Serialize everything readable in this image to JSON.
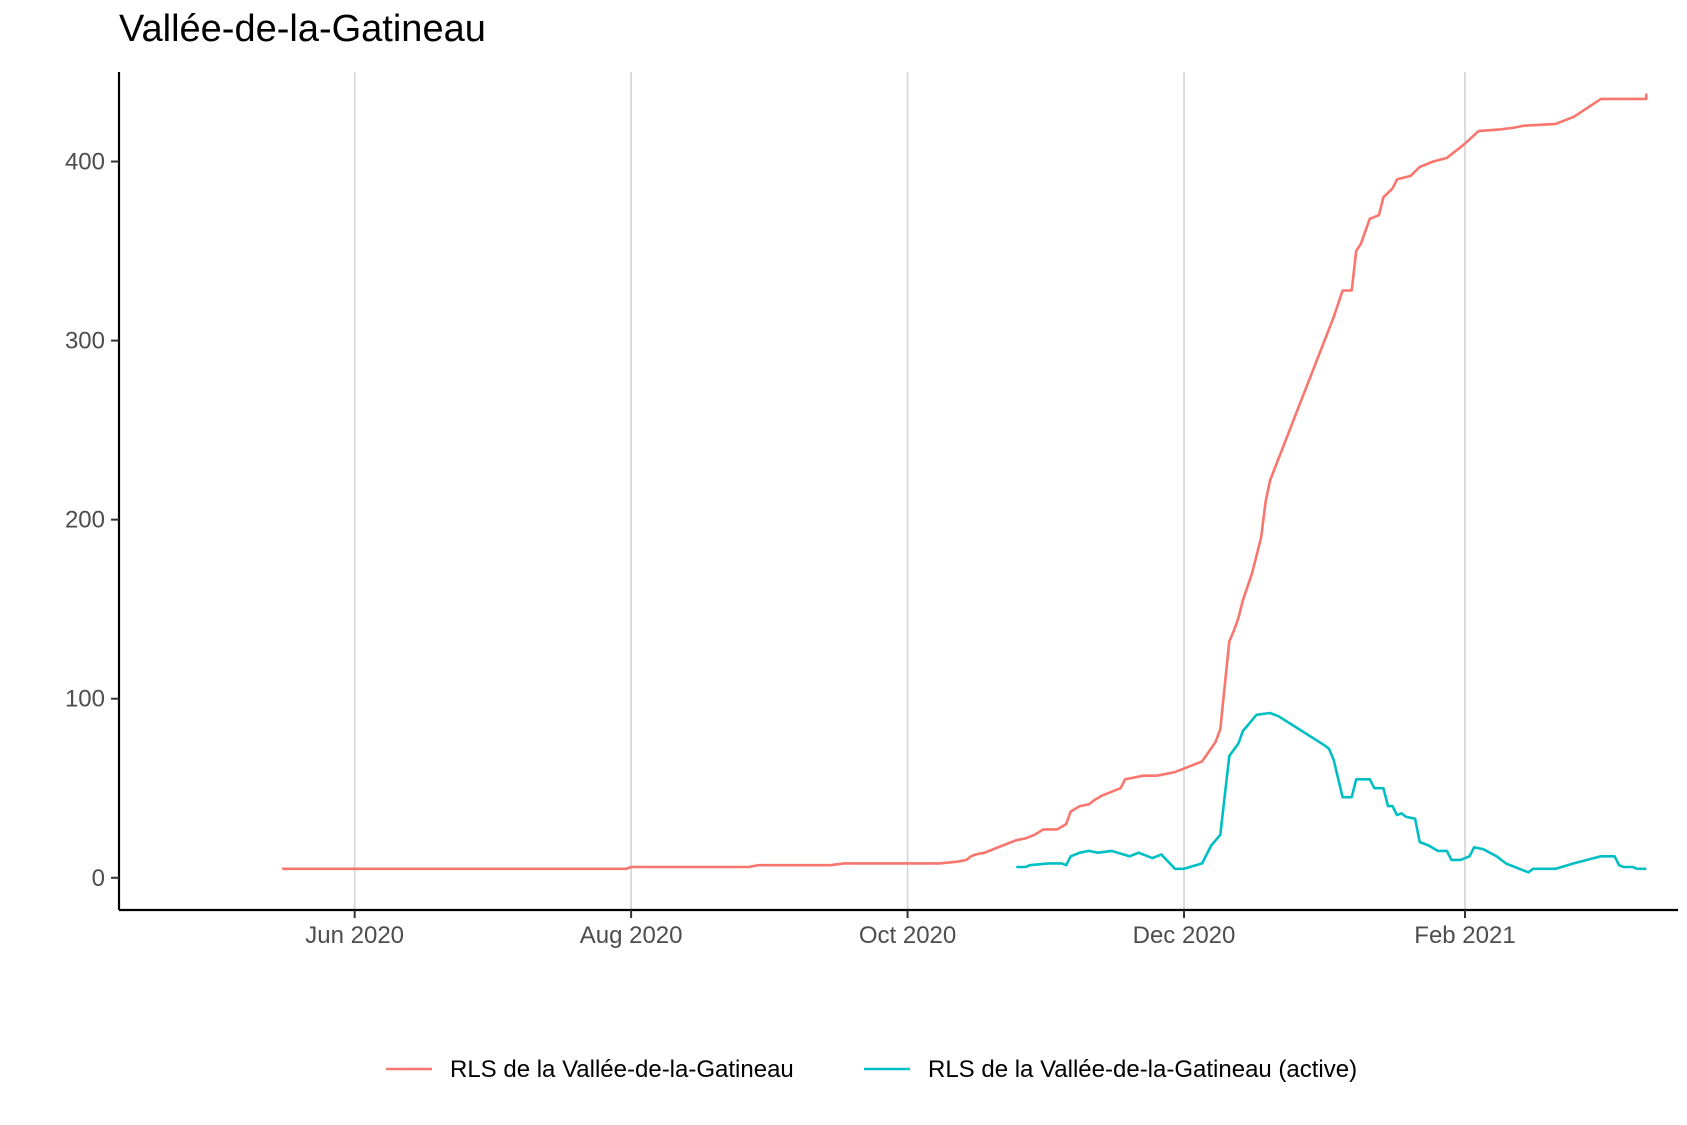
{
  "chart_data": {
    "type": "line",
    "title": "Vallée-de-la-Gatineau",
    "xlabel": "",
    "ylabel": "",
    "x_type": "date",
    "xlim": [
      "2020-04-10",
      "2021-03-20"
    ],
    "ylim": [
      -18,
      450
    ],
    "x_ticks": [
      {
        "date": "2020-06-01",
        "label": "Jun 2020"
      },
      {
        "date": "2020-08-01",
        "label": "Aug 2020"
      },
      {
        "date": "2020-10-01",
        "label": "Oct 2020"
      },
      {
        "date": "2020-12-01",
        "label": "Dec 2020"
      },
      {
        "date": "2021-02-01",
        "label": "Feb 2021"
      }
    ],
    "y_ticks": [
      {
        "value": 0,
        "label": "0"
      },
      {
        "value": 100,
        "label": "100"
      },
      {
        "value": 200,
        "label": "200"
      },
      {
        "value": 300,
        "label": "300"
      },
      {
        "value": 400,
        "label": "400"
      }
    ],
    "grid": "vertical-major",
    "legend_position": "bottom",
    "series": [
      {
        "name": "RLS de la Vallée-de-la-Gatineau",
        "color": "#f8766d",
        "points": [
          [
            "2020-05-16",
            5
          ],
          [
            "2020-07-31",
            5
          ],
          [
            "2020-08-01",
            6
          ],
          [
            "2020-08-27",
            6
          ],
          [
            "2020-08-29",
            7
          ],
          [
            "2020-09-14",
            7
          ],
          [
            "2020-09-17",
            8
          ],
          [
            "2020-10-08",
            8
          ],
          [
            "2020-10-12",
            9
          ],
          [
            "2020-10-14",
            10
          ],
          [
            "2020-10-15",
            12
          ],
          [
            "2020-10-16",
            13
          ],
          [
            "2020-10-18",
            14
          ],
          [
            "2020-10-22",
            18
          ],
          [
            "2020-10-25",
            21
          ],
          [
            "2020-10-27",
            22
          ],
          [
            "2020-10-29",
            24
          ],
          [
            "2020-10-31",
            27
          ],
          [
            "2020-11-03",
            27
          ],
          [
            "2020-11-05",
            30
          ],
          [
            "2020-11-06",
            37
          ],
          [
            "2020-11-08",
            40
          ],
          [
            "2020-11-10",
            41
          ],
          [
            "2020-11-11",
            43
          ],
          [
            "2020-11-13",
            46
          ],
          [
            "2020-11-17",
            50
          ],
          [
            "2020-11-18",
            55
          ],
          [
            "2020-11-20",
            56
          ],
          [
            "2020-11-22",
            57
          ],
          [
            "2020-11-25",
            57
          ],
          [
            "2020-11-29",
            59
          ],
          [
            "2020-12-05",
            65
          ],
          [
            "2020-12-08",
            76
          ],
          [
            "2020-12-09",
            83
          ],
          [
            "2020-12-11",
            132
          ],
          [
            "2020-12-12",
            138
          ],
          [
            "2020-12-13",
            145
          ],
          [
            "2020-12-14",
            155
          ],
          [
            "2020-12-16",
            170
          ],
          [
            "2020-12-18",
            190
          ],
          [
            "2020-12-19",
            210
          ],
          [
            "2020-12-20",
            222
          ],
          [
            "2021-01-01",
            300
          ],
          [
            "2021-01-03",
            313
          ],
          [
            "2021-01-05",
            328
          ],
          [
            "2021-01-07",
            328
          ],
          [
            "2021-01-08",
            350
          ],
          [
            "2021-01-09",
            354
          ],
          [
            "2021-01-11",
            368
          ],
          [
            "2021-01-13",
            370
          ],
          [
            "2021-01-14",
            380
          ],
          [
            "2021-01-16",
            385
          ],
          [
            "2021-01-17",
            390
          ],
          [
            "2021-01-20",
            392
          ],
          [
            "2021-01-22",
            397
          ],
          [
            "2021-01-25",
            400
          ],
          [
            "2021-01-28",
            402
          ],
          [
            "2021-01-30",
            406
          ],
          [
            "2021-02-01",
            410
          ],
          [
            "2021-02-04",
            417
          ],
          [
            "2021-02-09",
            418
          ],
          [
            "2021-02-12",
            419
          ],
          [
            "2021-02-14",
            420
          ],
          [
            "2021-02-21",
            421
          ],
          [
            "2021-02-25",
            425
          ],
          [
            "2021-03-03",
            435
          ],
          [
            "2021-03-13",
            435
          ],
          [
            "2021-03-13",
            438
          ]
        ]
      },
      {
        "name": "RLS de la Vallée-de-la-Gatineau (active)",
        "color": "#00bfc4",
        "points": [
          [
            "2020-10-25",
            6
          ],
          [
            "2020-10-27",
            6
          ],
          [
            "2020-10-28",
            7
          ],
          [
            "2020-11-01",
            8
          ],
          [
            "2020-11-04",
            8
          ],
          [
            "2020-11-05",
            7
          ],
          [
            "2020-11-06",
            12
          ],
          [
            "2020-11-08",
            14
          ],
          [
            "2020-11-10",
            15
          ],
          [
            "2020-11-12",
            14
          ],
          [
            "2020-11-15",
            15
          ],
          [
            "2020-11-19",
            12
          ],
          [
            "2020-11-21",
            14
          ],
          [
            "2020-11-24",
            11
          ],
          [
            "2020-11-26",
            13
          ],
          [
            "2020-11-29",
            5
          ],
          [
            "2020-12-01",
            5
          ],
          [
            "2020-12-05",
            8
          ],
          [
            "2020-12-07",
            18
          ],
          [
            "2020-12-09",
            24
          ],
          [
            "2020-12-11",
            68
          ],
          [
            "2020-12-13",
            75
          ],
          [
            "2020-12-14",
            82
          ],
          [
            "2020-12-15",
            85
          ],
          [
            "2020-12-17",
            91
          ],
          [
            "2020-12-20",
            92
          ],
          [
            "2020-12-22",
            90
          ],
          [
            "2021-01-01",
            74
          ],
          [
            "2021-01-02",
            72
          ],
          [
            "2021-01-03",
            66
          ],
          [
            "2021-01-05",
            45
          ],
          [
            "2021-01-07",
            45
          ],
          [
            "2021-01-08",
            55
          ],
          [
            "2021-01-11",
            55
          ],
          [
            "2021-01-12",
            50
          ],
          [
            "2021-01-14",
            50
          ],
          [
            "2021-01-15",
            40
          ],
          [
            "2021-01-16",
            40
          ],
          [
            "2021-01-17",
            35
          ],
          [
            "2021-01-18",
            36
          ],
          [
            "2021-01-19",
            34
          ],
          [
            "2021-01-21",
            33
          ],
          [
            "2021-01-22",
            20
          ],
          [
            "2021-01-24",
            18
          ],
          [
            "2021-01-26",
            15
          ],
          [
            "2021-01-28",
            15
          ],
          [
            "2021-01-29",
            10
          ],
          [
            "2021-01-31",
            10
          ],
          [
            "2021-02-02",
            12
          ],
          [
            "2021-02-03",
            17
          ],
          [
            "2021-02-05",
            16
          ],
          [
            "2021-02-08",
            12
          ],
          [
            "2021-02-10",
            8
          ],
          [
            "2021-02-12",
            6
          ],
          [
            "2021-02-14",
            4
          ],
          [
            "2021-02-15",
            3
          ],
          [
            "2021-02-16",
            5
          ],
          [
            "2021-02-21",
            5
          ],
          [
            "2021-02-25",
            8
          ],
          [
            "2021-03-03",
            12
          ],
          [
            "2021-03-06",
            12
          ],
          [
            "2021-03-07",
            7
          ],
          [
            "2021-03-08",
            6
          ],
          [
            "2021-03-10",
            6
          ],
          [
            "2021-03-11",
            5
          ],
          [
            "2021-03-13",
            5
          ]
        ]
      }
    ]
  }
}
